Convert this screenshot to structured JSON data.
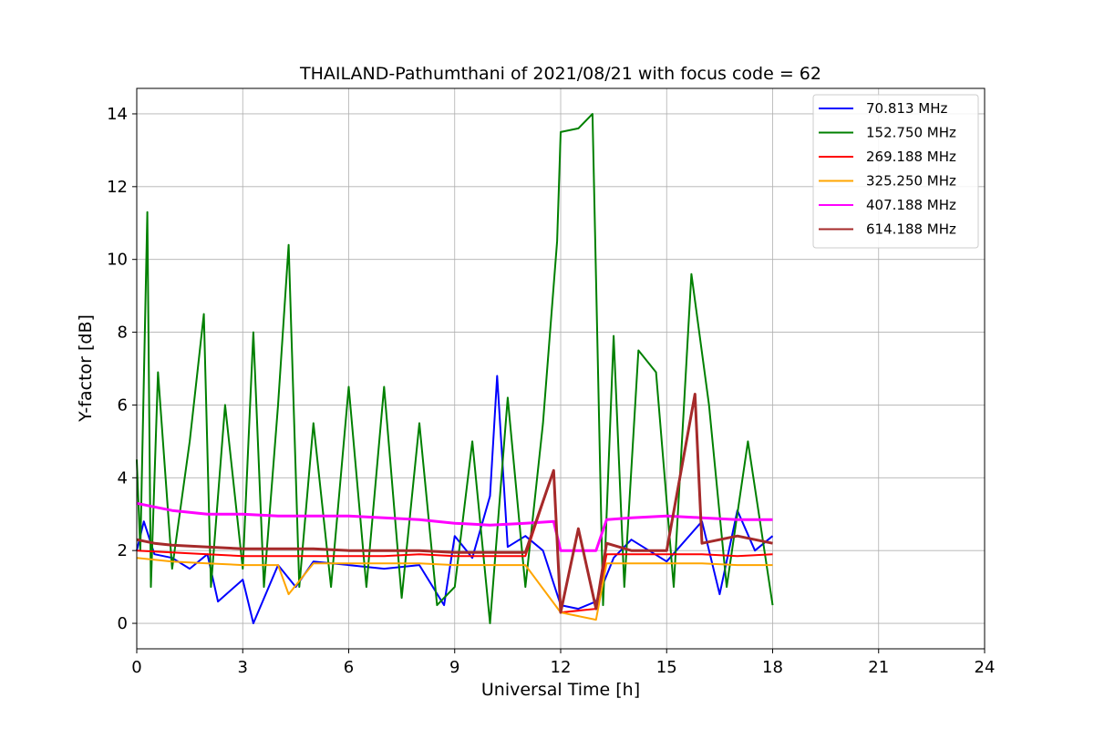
{
  "chart_data": {
    "type": "line",
    "title": "THAILAND-Pathumthani of 2021/08/21 with focus code = 62",
    "xlabel": "Universal Time [h]",
    "ylabel": "Y-factor [dB]",
    "xlim": [
      0,
      24
    ],
    "ylim": [
      -0.7,
      14.7
    ],
    "xticks": [
      0,
      3,
      6,
      9,
      12,
      15,
      18,
      21,
      24
    ],
    "yticks": [
      0,
      2,
      4,
      6,
      8,
      10,
      12,
      14
    ],
    "grid": true,
    "legend_position": "upper-right",
    "series": [
      {
        "name": " 70.813 MHz",
        "color": "#0000ff",
        "x": [
          0,
          0.2,
          0.5,
          1,
          1.5,
          2,
          2.3,
          3,
          3.3,
          4,
          4.5,
          5,
          6,
          7,
          8,
          8.7,
          9,
          9.5,
          10,
          10.2,
          10.5,
          11,
          11.5,
          12,
          12.5,
          13,
          13.5,
          14,
          15,
          16,
          16.5,
          17,
          17.5,
          18
        ],
        "y": [
          2.0,
          2.8,
          1.9,
          1.8,
          1.5,
          1.9,
          0.6,
          1.2,
          0.0,
          1.6,
          1.0,
          1.7,
          1.6,
          1.5,
          1.6,
          0.5,
          2.4,
          1.8,
          3.5,
          6.8,
          2.1,
          2.4,
          2.0,
          0.5,
          0.4,
          0.6,
          1.8,
          2.3,
          1.7,
          2.8,
          0.8,
          3.1,
          2.0,
          2.4
        ]
      },
      {
        "name": "152.750 MHz",
        "color": "#008000",
        "x": [
          0,
          0.1,
          0.3,
          0.4,
          0.6,
          1,
          1.5,
          1.9,
          2.1,
          2.5,
          3,
          3.3,
          3.6,
          4,
          4.3,
          4.6,
          5,
          5.5,
          6,
          6.5,
          7,
          7.5,
          8,
          8.5,
          9,
          9.5,
          10,
          10.5,
          11,
          11.5,
          11.9,
          12,
          12.5,
          12.9,
          13.2,
          13.5,
          13.8,
          14.2,
          14.7,
          15.2,
          15.7,
          16.2,
          16.7,
          17.3,
          18
        ],
        "y": [
          4.5,
          2.0,
          11.3,
          1.0,
          6.9,
          1.5,
          5.0,
          8.5,
          1.0,
          6.0,
          1.5,
          8.0,
          1.0,
          6.0,
          10.4,
          1.0,
          5.5,
          1.0,
          6.5,
          1.0,
          6.5,
          0.7,
          5.5,
          0.5,
          1.0,
          5.0,
          0.0,
          6.2,
          1.0,
          5.5,
          10.5,
          13.5,
          13.6,
          14.0,
          0.5,
          7.9,
          1.0,
          7.5,
          6.9,
          1.0,
          9.6,
          6.0,
          1.0,
          5.0,
          0.5
        ]
      },
      {
        "name": "269.188 MHz",
        "color": "#ff0000",
        "x": [
          0,
          1,
          2,
          3,
          4,
          5,
          6,
          7,
          8,
          9,
          10,
          11,
          11.8,
          12,
          13,
          13.3,
          14,
          15,
          16,
          17,
          18
        ],
        "y": [
          2.0,
          1.95,
          1.9,
          1.85,
          1.85,
          1.85,
          1.85,
          1.85,
          1.9,
          1.85,
          1.85,
          1.85,
          4.2,
          0.3,
          0.4,
          1.9,
          1.9,
          1.9,
          1.9,
          1.85,
          1.9
        ]
      },
      {
        "name": "325.250 MHz",
        "color": "#ffa500",
        "x": [
          0,
          1,
          2,
          3,
          4,
          4.3,
          5,
          6,
          7,
          8,
          9,
          10,
          11,
          12,
          13,
          13.3,
          14,
          15,
          16,
          17,
          18
        ],
        "y": [
          1.8,
          1.7,
          1.65,
          1.6,
          1.6,
          0.8,
          1.65,
          1.65,
          1.65,
          1.65,
          1.6,
          1.6,
          1.6,
          0.3,
          0.1,
          1.65,
          1.65,
          1.65,
          1.65,
          1.6,
          1.6
        ]
      },
      {
        "name": "407.188 MHz",
        "color": "#ff00ff",
        "x": [
          0,
          0.5,
          1,
          2,
          3,
          4,
          5,
          6,
          7,
          8,
          9,
          10,
          11,
          11.8,
          12,
          13,
          13.3,
          14,
          15,
          16,
          17,
          18
        ],
        "y": [
          3.3,
          3.2,
          3.1,
          3.0,
          3.0,
          2.95,
          2.95,
          2.95,
          2.9,
          2.85,
          2.75,
          2.7,
          2.75,
          2.8,
          2.0,
          2.0,
          2.85,
          2.9,
          2.95,
          2.9,
          2.85,
          2.85
        ]
      },
      {
        "name": "614.188 MHz",
        "color": "#a52a2a",
        "x": [
          0,
          0.5,
          1,
          2,
          3,
          4,
          5,
          6,
          7,
          8,
          9,
          10,
          11,
          11.8,
          12,
          12.5,
          13,
          13.3,
          14,
          15,
          15.8,
          16,
          17,
          18
        ],
        "y": [
          2.3,
          2.2,
          2.15,
          2.1,
          2.05,
          2.05,
          2.05,
          2.0,
          2.0,
          2.0,
          1.95,
          1.95,
          1.95,
          4.2,
          0.3,
          2.6,
          0.4,
          2.2,
          2.0,
          2.0,
          6.3,
          2.2,
          2.4,
          2.2
        ]
      }
    ]
  }
}
